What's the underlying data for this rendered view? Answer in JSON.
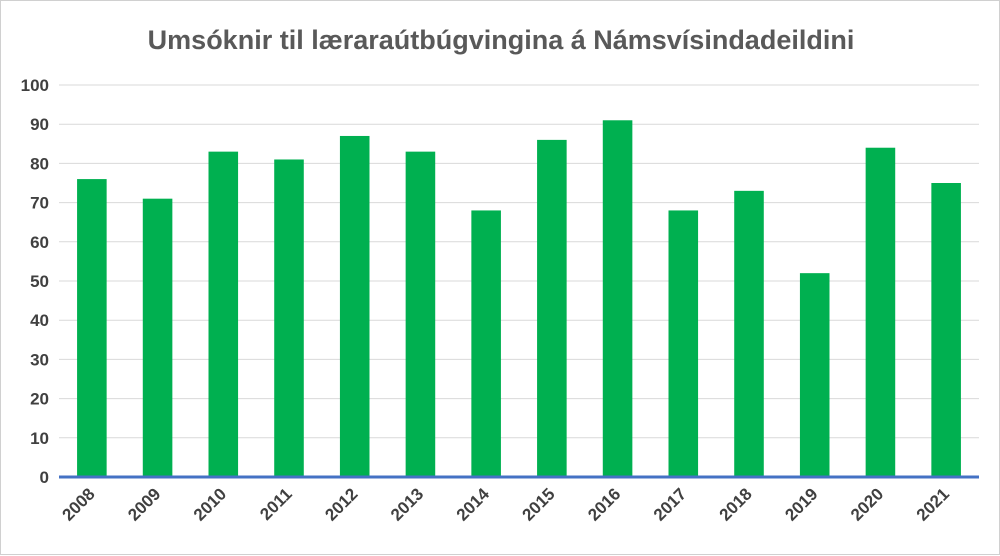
{
  "chart_data": {
    "type": "bar",
    "title": "Umsóknir til læraraútbúgvingina á Námsvísindadeildini",
    "xlabel": "",
    "ylabel": "",
    "categories": [
      "2008",
      "2009",
      "2010",
      "2011",
      "2012",
      "2013",
      "2014",
      "2015",
      "2016",
      "2017",
      "2018",
      "2019",
      "2020",
      "2021"
    ],
    "series": [
      {
        "values": [
          76,
          71,
          83,
          81,
          87,
          83,
          68,
          86,
          91,
          68,
          73,
          52,
          84,
          75
        ]
      }
    ],
    "ylim": [
      0,
      100
    ],
    "yticks": [
      0,
      10,
      20,
      30,
      40,
      50,
      60,
      70,
      80,
      90,
      100
    ],
    "grid": true,
    "legend": "none",
    "colors": {
      "bar": "#00b050",
      "grid": "#d9d9d9",
      "x_axis": "#4472c4",
      "title": "#595959",
      "tick_text": "#404040"
    }
  }
}
